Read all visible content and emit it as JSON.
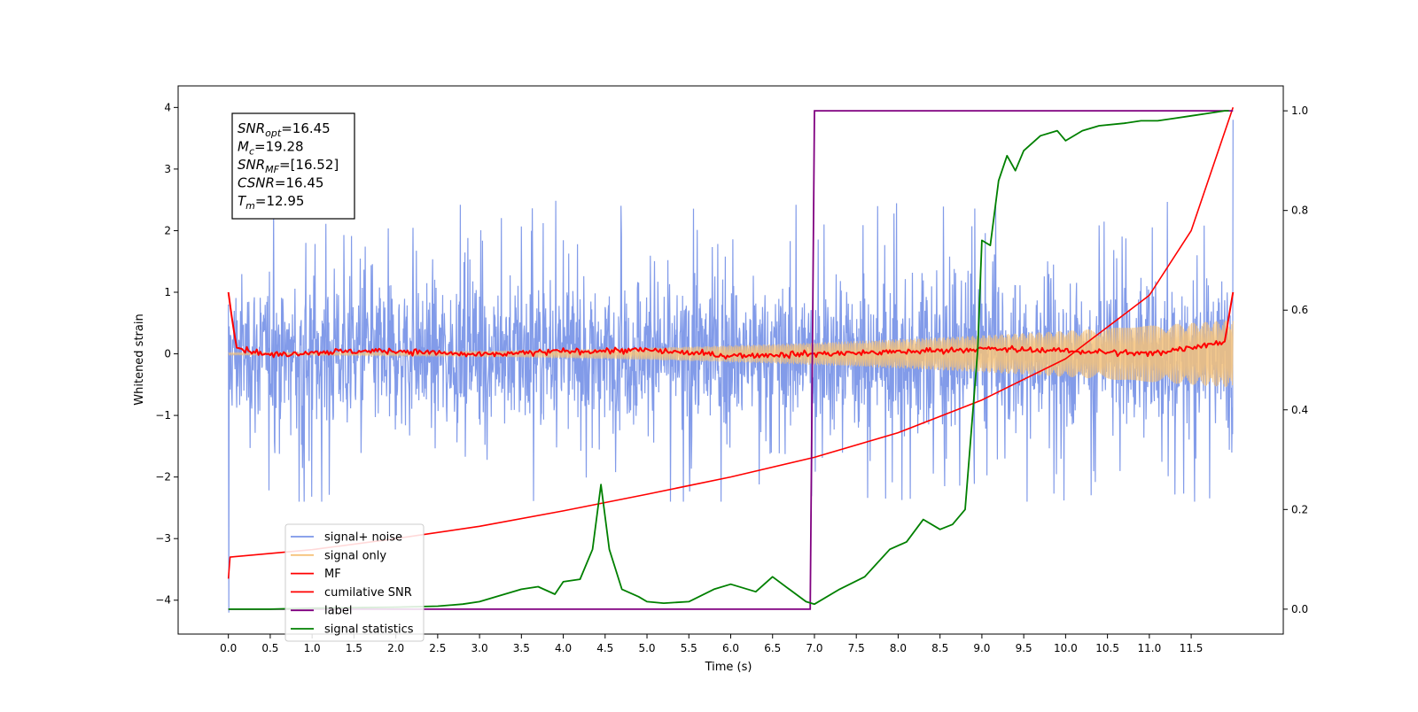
{
  "chart_data": {
    "type": "line",
    "xlabel": "Time (s)",
    "ylabel": "Whitened strain",
    "xlim": [
      -0.6,
      12.6
    ],
    "ylim": [
      -4.55,
      4.35
    ],
    "y2lim": [
      -0.05,
      1.05
    ],
    "x_ticks": [
      0.0,
      0.5,
      1.0,
      1.5,
      2.0,
      2.5,
      3.0,
      3.5,
      4.0,
      4.5,
      5.0,
      5.5,
      6.0,
      6.5,
      7.0,
      7.5,
      8.0,
      8.5,
      9.0,
      9.5,
      10.0,
      10.5,
      11.0,
      11.5
    ],
    "x_tick_labels": [
      "0.0",
      "0.5",
      "1.0",
      "1.5",
      "2.0",
      "2.5",
      "3.0",
      "3.5",
      "4.0",
      "4.5",
      "5.0",
      "5.5",
      "6.0",
      "6.5",
      "7.0",
      "7.5",
      "8.0",
      "8.5",
      "9.0",
      "9.5",
      "10.0",
      "10.5",
      "11.0",
      "11.5"
    ],
    "y_ticks": [
      -4,
      -3,
      -2,
      -1,
      0,
      1,
      2,
      3,
      4
    ],
    "y_tick_labels": [
      "−4",
      "−3",
      "−2",
      "−1",
      "0",
      "1",
      "2",
      "3",
      "4"
    ],
    "y2_ticks": [
      0.0,
      0.2,
      0.4,
      0.6,
      0.8,
      1.0
    ],
    "y2_tick_labels": [
      "0.0",
      "0.2",
      "0.4",
      "0.6",
      "0.8",
      "1.0"
    ],
    "grid": false,
    "legend_position": "lower-left",
    "annotation": [
      {
        "base": "SNR",
        "sub": "opt",
        "text": "=16.45"
      },
      {
        "base": "M",
        "sub": "c",
        "text": "=19.28"
      },
      {
        "base": "SNR",
        "sub": "MF",
        "text": "=[16.52]"
      },
      {
        "base": "CSNR",
        "sub": "",
        "text": "=16.45"
      },
      {
        "base": "T",
        "sub": "m",
        "text": "=12.95"
      }
    ],
    "series": [
      {
        "name": "signal+ noise",
        "axis": "left",
        "color": "#7b96e8",
        "note": "noisy whitened strain, approx. range -2.4 to 2.6 (extremes -4.2 at 0.0 s, 3.8 at 12.0 s)",
        "envelope_min": -2.4,
        "envelope_max": 2.6,
        "x": [
          0.0,
          12.0
        ]
      },
      {
        "name": "signal only",
        "axis": "left",
        "color": "#f5c27a",
        "note": "chirp oscillation, amplitude grows from ~0.02 to ~0.55",
        "amplitude_start": 0.02,
        "amplitude_end": 0.55,
        "x": [
          0.0,
          12.0
        ]
      },
      {
        "name": "MF",
        "axis": "left",
        "color": "#ff0000",
        "note": "noisy, near zero; starts ~1.0 and ends ~1.0",
        "x": [
          0.0,
          0.05,
          0.1,
          0.5,
          1.0,
          2.0,
          3.0,
          4.0,
          5.0,
          6.0,
          7.0,
          8.0,
          9.0,
          10.0,
          11.0,
          11.9,
          12.0
        ],
        "y": [
          1.0,
          0.5,
          0.1,
          -0.02,
          0.03,
          0.05,
          -0.02,
          0.04,
          0.06,
          -0.03,
          0.0,
          0.03,
          0.08,
          0.05,
          0.0,
          0.2,
          1.0
        ]
      },
      {
        "name": "cumilative SNR",
        "axis": "left",
        "color": "#ff0000",
        "x": [
          0.0,
          0.02,
          1.0,
          2.0,
          3.0,
          4.0,
          5.0,
          6.0,
          7.0,
          8.0,
          9.0,
          10.0,
          11.0,
          11.5,
          12.0
        ],
        "y": [
          -3.65,
          -3.3,
          -3.18,
          -3.0,
          -2.8,
          -2.55,
          -2.28,
          -2.0,
          -1.68,
          -1.28,
          -0.75,
          -0.08,
          0.95,
          2.0,
          4.0
        ]
      },
      {
        "name": "label",
        "axis": "right",
        "color": "#800080",
        "x": [
          0.0,
          6.95,
          7.0,
          12.0
        ],
        "y": [
          0.0,
          0.0,
          1.0,
          1.0
        ]
      },
      {
        "name": "signal statistics",
        "axis": "right",
        "color": "#008000",
        "x": [
          0.0,
          0.5,
          1.0,
          1.5,
          2.0,
          2.5,
          2.8,
          3.0,
          3.2,
          3.5,
          3.7,
          3.9,
          4.0,
          4.2,
          4.35,
          4.45,
          4.55,
          4.7,
          4.9,
          5.0,
          5.2,
          5.5,
          5.8,
          6.0,
          6.3,
          6.5,
          6.7,
          6.9,
          7.0,
          7.3,
          7.6,
          7.9,
          8.1,
          8.3,
          8.5,
          8.65,
          8.8,
          8.95,
          9.0,
          9.1,
          9.2,
          9.3,
          9.4,
          9.5,
          9.7,
          9.9,
          10.0,
          10.2,
          10.4,
          10.7,
          10.9,
          11.1,
          11.3,
          11.5,
          11.7,
          11.9,
          11.95
        ],
        "y": [
          0.0,
          0.0,
          0.002,
          0.003,
          0.004,
          0.006,
          0.01,
          0.015,
          0.025,
          0.04,
          0.045,
          0.03,
          0.055,
          0.06,
          0.12,
          0.25,
          0.12,
          0.04,
          0.025,
          0.015,
          0.012,
          0.015,
          0.04,
          0.05,
          0.035,
          0.065,
          0.04,
          0.015,
          0.01,
          0.04,
          0.065,
          0.12,
          0.135,
          0.18,
          0.16,
          0.17,
          0.2,
          0.52,
          0.74,
          0.73,
          0.86,
          0.91,
          0.88,
          0.92,
          0.95,
          0.96,
          0.94,
          0.96,
          0.97,
          0.975,
          0.98,
          0.98,
          0.985,
          0.99,
          0.995,
          1.0,
          1.0
        ]
      }
    ]
  }
}
